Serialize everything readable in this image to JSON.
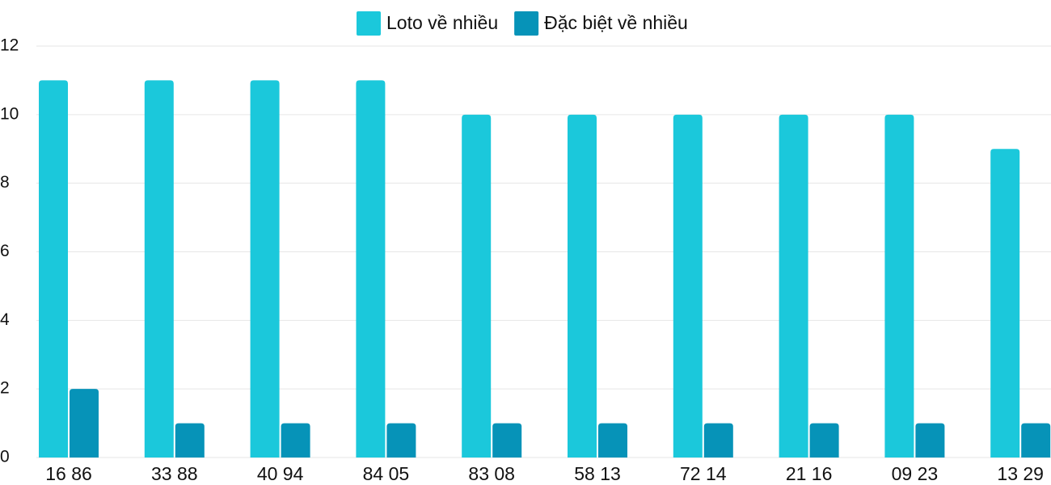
{
  "chart_data": {
    "type": "bar",
    "categories": [
      "16 86",
      "33 88",
      "40 94",
      "84 05",
      "83 08",
      "58 13",
      "72 14",
      "21 16",
      "09 23",
      "13 29"
    ],
    "series": [
      {
        "name": "Loto về nhiều",
        "color": "#1bc8db",
        "values": [
          11,
          11,
          11,
          11,
          10,
          10,
          10,
          10,
          10,
          9
        ]
      },
      {
        "name": "Đặc biệt về nhiều",
        "color": "#0693b8",
        "values": [
          2,
          1,
          1,
          1,
          1,
          1,
          1,
          1,
          1,
          1
        ]
      }
    ],
    "ylim": [
      0,
      12
    ],
    "yticks": [
      0,
      2,
      4,
      6,
      8,
      10,
      12
    ],
    "grid": true,
    "legend": "top"
  }
}
